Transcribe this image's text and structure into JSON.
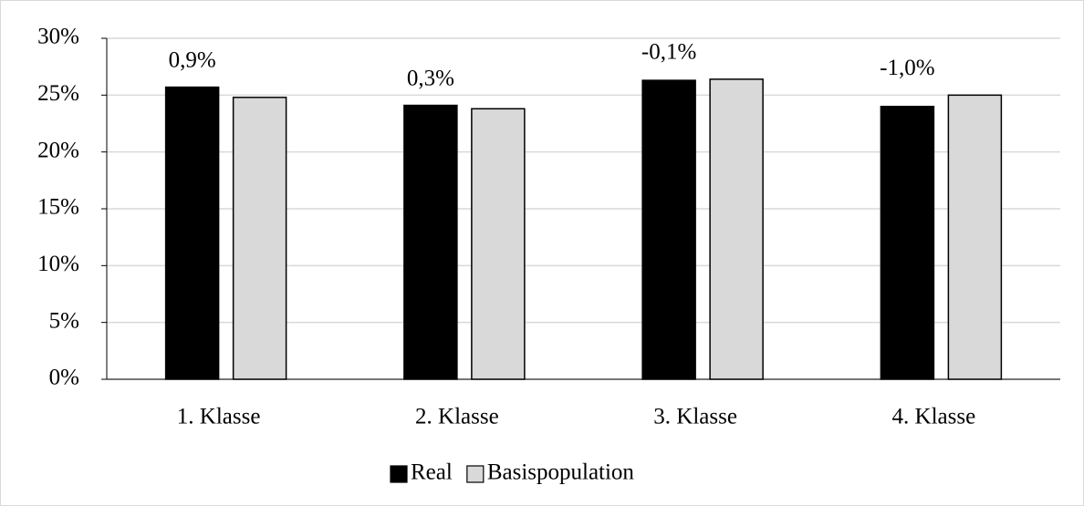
{
  "chart_data": {
    "type": "bar",
    "categories": [
      "1. Klasse",
      "2. Klasse",
      "3. Klasse",
      "4. Klasse"
    ],
    "series": [
      {
        "name": "Real",
        "color": "#000000",
        "values": [
          25.7,
          24.1,
          26.3,
          24.0
        ]
      },
      {
        "name": "Basispopulation",
        "color": "#d9d9d9",
        "values": [
          24.8,
          23.8,
          26.4,
          25.0
        ]
      }
    ],
    "annotations": [
      "0,9%",
      "0,3%",
      "-0,1%",
      "-1,0%"
    ],
    "ylim": [
      0,
      30
    ],
    "yticks": [
      {
        "value": 0,
        "label": "0%"
      },
      {
        "value": 5,
        "label": "5%"
      },
      {
        "value": 10,
        "label": "10%"
      },
      {
        "value": 15,
        "label": "15%"
      },
      {
        "value": 20,
        "label": "20%"
      },
      {
        "value": 25,
        "label": "25%"
      },
      {
        "value": 30,
        "label": "30%"
      }
    ],
    "grid": true,
    "legend": "bottom"
  }
}
